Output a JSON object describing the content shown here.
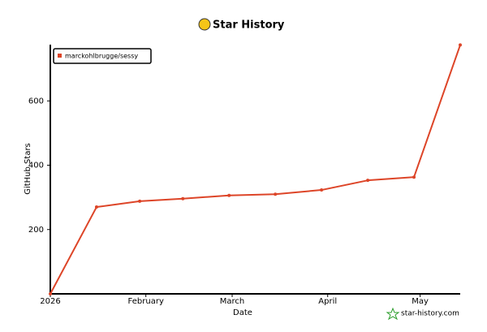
{
  "chart_data": {
    "type": "line",
    "title": "Star History",
    "xlabel": "Date",
    "ylabel": "GitHub Stars",
    "watermark": "star-history.com",
    "x": [
      0,
      15,
      29,
      43,
      58,
      73,
      88,
      103,
      118,
      133
    ],
    "series": [
      {
        "name": "marckohlbrugge/sessy",
        "color": "#dd4528",
        "values": [
          0,
          270,
          288,
          296,
          306,
          310,
          323,
          353,
          363,
          774
        ]
      }
    ],
    "xlim": [
      0,
      133
    ],
    "xticks": [
      {
        "value": 0,
        "label": "2026"
      },
      {
        "value": 31,
        "label": "February"
      },
      {
        "value": 59,
        "label": "March"
      },
      {
        "value": 90,
        "label": "April"
      },
      {
        "value": 120,
        "label": "May"
      }
    ],
    "ylim": [
      0,
      775
    ],
    "yticks": [
      200,
      400,
      600
    ],
    "legend": "top-left"
  }
}
